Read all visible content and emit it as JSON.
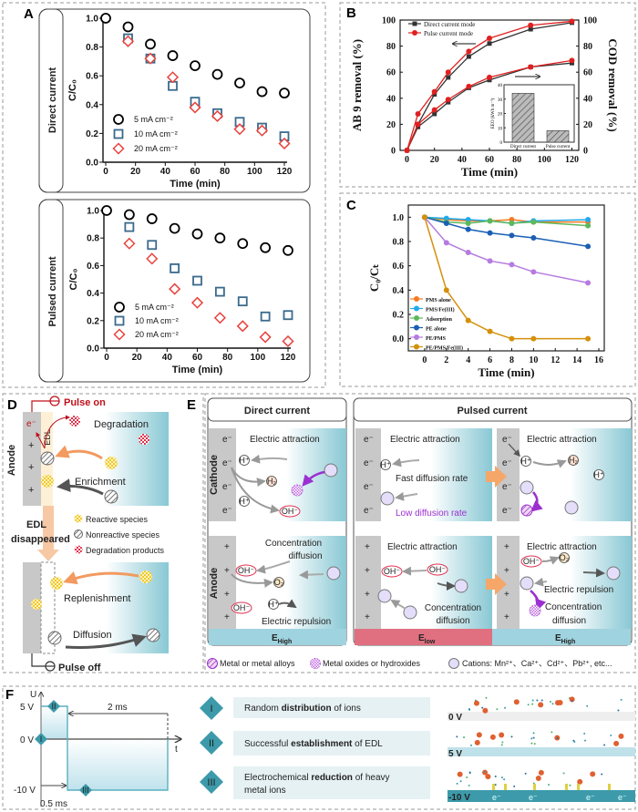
{
  "panel_labels": {
    "A": "A",
    "B": "B",
    "C": "C",
    "D": "D",
    "E": "E",
    "F": "F"
  },
  "panel_a": {
    "direct_label": "Direct current",
    "pulsed_label": "Pulsed current"
  },
  "chart_data": [
    {
      "id": "a-direct",
      "type": "scatter",
      "xlabel": "Time (min)",
      "ylabel": "C/C₀",
      "xlim": [
        0,
        120
      ],
      "ylim": [
        0,
        1.0
      ],
      "xticks": [
        "0",
        "20",
        "40",
        "60",
        "80",
        "100",
        "120"
      ],
      "yticks": [
        "0.0",
        "0.2",
        "0.4",
        "0.6",
        "0.8",
        "1.0"
      ],
      "x": [
        0,
        15,
        30,
        45,
        60,
        75,
        90,
        105,
        120
      ],
      "legend": "bottom-left",
      "series": [
        {
          "name": "5 mA cm⁻²",
          "marker": "circle",
          "color": "#000000",
          "values": [
            1.0,
            0.94,
            0.82,
            0.74,
            0.67,
            0.61,
            0.55,
            0.49,
            0.48
          ]
        },
        {
          "name": "10 mA cm⁻²",
          "marker": "square",
          "color": "#3a6a8c",
          "values": [
            null,
            0.86,
            0.72,
            0.53,
            0.42,
            0.34,
            0.28,
            0.24,
            0.18
          ]
        },
        {
          "name": "20 mA cm⁻²",
          "marker": "diamond",
          "color": "#e8413c",
          "values": [
            null,
            0.84,
            0.72,
            0.59,
            0.38,
            0.32,
            0.23,
            0.22,
            0.13
          ]
        }
      ]
    },
    {
      "id": "a-pulsed",
      "type": "scatter",
      "xlabel": "Time (min)",
      "ylabel": "C/C₀",
      "xlim": [
        0,
        120
      ],
      "ylim": [
        0,
        1.0
      ],
      "xticks": [
        "0",
        "20",
        "40",
        "60",
        "80",
        "100",
        "120"
      ],
      "yticks": [
        "0.0",
        "0.2",
        "0.4",
        "0.6",
        "0.8",
        "1.0"
      ],
      "x": [
        0,
        15,
        30,
        45,
        60,
        75,
        90,
        105,
        120
      ],
      "legend": "bottom-left",
      "series": [
        {
          "name": "5 mA cm⁻²",
          "marker": "circle",
          "color": "#000000",
          "values": [
            1.0,
            0.97,
            0.94,
            0.87,
            0.83,
            0.8,
            0.76,
            0.73,
            0.71
          ]
        },
        {
          "name": "10 mA cm⁻²",
          "marker": "square",
          "color": "#3a6a8c",
          "values": [
            null,
            0.88,
            0.75,
            0.58,
            0.49,
            0.41,
            0.34,
            0.23,
            0.24
          ]
        },
        {
          "name": "20 mA cm⁻²",
          "marker": "diamond",
          "color": "#e8413c",
          "values": [
            null,
            0.76,
            0.65,
            0.43,
            0.33,
            0.22,
            0.16,
            0.08,
            0.05
          ]
        }
      ]
    },
    {
      "id": "b-removal",
      "type": "line",
      "xlabel": "Time (min)",
      "ylabel": "AB 9 removal (%)",
      "ylabel_right": "COD removal (%)",
      "xlim": [
        -5,
        125
      ],
      "ylim": [
        0,
        100
      ],
      "xticks": [
        "0",
        "20",
        "40",
        "60",
        "80",
        "100",
        "120"
      ],
      "yticks": [
        "0",
        "20",
        "40",
        "60",
        "80",
        "100"
      ],
      "yticks_right": [
        "0",
        "20",
        "40",
        "60",
        "80",
        "100"
      ],
      "x": [
        0,
        8,
        20,
        30,
        45,
        60,
        90,
        120
      ],
      "legend": "top-left",
      "series": [
        {
          "name": "Direct current mode",
          "marker": "square-filled",
          "color": "#333333",
          "axis": "left",
          "values": [
            0,
            20,
            43,
            56,
            72,
            82,
            93,
            98
          ]
        },
        {
          "name": "Pulse current mode",
          "marker": "circle-filled",
          "color": "#e02020",
          "axis": "left",
          "values": [
            0,
            28,
            45,
            60,
            76,
            86,
            96,
            99
          ]
        },
        {
          "marker": "square-filled",
          "color": "#333333",
          "axis": "right",
          "values": [
            0,
            18,
            28,
            37,
            48,
            54,
            64,
            67
          ]
        },
        {
          "marker": "circle-filled",
          "color": "#e02020",
          "axis": "right",
          "values": [
            0,
            20,
            31,
            39,
            49,
            56,
            64,
            69
          ]
        }
      ]
    },
    {
      "id": "b-inset",
      "type": "bar",
      "ylabel": "EEO (kWh m⁻³)",
      "ylim": [
        0,
        40
      ],
      "yticks": [
        "0",
        "10",
        "20",
        "30",
        "40"
      ],
      "categories": [
        "Direct current",
        "Pulse current"
      ],
      "values": [
        34,
        8
      ]
    },
    {
      "id": "c-kinetics",
      "type": "line",
      "xlabel": "Time (min)",
      "ylabel": "C₀/Cₜ",
      "xlim": [
        -1.5,
        16.5
      ],
      "ylim": [
        -0.1,
        1.1
      ],
      "xticks": [
        "0",
        "2",
        "4",
        "6",
        "8",
        "10",
        "12",
        "14",
        "16"
      ],
      "yticks": [
        "0.0",
        "0.2",
        "0.4",
        "0.6",
        "0.8",
        "1.0"
      ],
      "x": [
        0,
        2,
        4,
        6,
        8,
        10,
        15
      ],
      "legend": "bottom-left",
      "series": [
        {
          "name": "PMS alone",
          "marker": "circle-filled",
          "color": "#f47a20",
          "values": [
            1.0,
            0.98,
            0.97,
            0.97,
            0.98,
            0.96,
            0.96
          ]
        },
        {
          "name": "PMS/Fe(III)",
          "marker": "circle-filled",
          "color": "#22aaee",
          "values": [
            1.0,
            0.99,
            0.98,
            0.97,
            0.95,
            0.97,
            0.98
          ]
        },
        {
          "name": "Adsorption",
          "marker": "circle-filled",
          "color": "#5cb85c",
          "values": [
            1.0,
            0.96,
            0.95,
            0.97,
            0.95,
            0.96,
            0.93
          ]
        },
        {
          "name": "PE alone",
          "marker": "circle-filled",
          "color": "#1a5fb4",
          "values": [
            1.0,
            0.95,
            0.9,
            0.87,
            0.85,
            0.83,
            0.76
          ]
        },
        {
          "name": "PE/PMS",
          "marker": "circle-filled",
          "color": "#b57be0",
          "values": [
            1.0,
            0.79,
            0.71,
            0.64,
            0.61,
            0.55,
            0.46
          ]
        },
        {
          "name": "PE/PMS/Fe(III)",
          "marker": "circle-filled",
          "color": "#d4900a",
          "values": [
            1.0,
            0.4,
            0.15,
            0.06,
            0.0,
            0.0,
            0.0
          ]
        }
      ]
    }
  ],
  "panel_d": {
    "pulse_on": "Pulse on",
    "pulse_off": "Pulse off",
    "anode": "Anode",
    "edl": "EDL",
    "electron": "e⁻",
    "plus": "+",
    "degradation": "Degradation",
    "enrichment": "Enrichment",
    "edl_disappeared_1": "EDL",
    "edl_disappeared_2": "disappeared",
    "legend": [
      "Reactive species",
      "Nonreactive species",
      "Degradation products"
    ],
    "replenishment": "Replenishment",
    "diffusion": "Diffusion"
  },
  "panel_e": {
    "direct_header": "Direct current",
    "pulsed_header": "Pulsed current",
    "cathode": "Cathode",
    "anode": "Anode",
    "electron": "e⁻",
    "plus": "+",
    "electric_attraction": "Electric attraction",
    "electric_repulsion": "Electric repulsion",
    "concentration": "Concentration",
    "diffusion": "diffusion",
    "fast_diffusion": "Fast diffusion rate",
    "low_diffusion": "Low diffusion rate",
    "h_plus": "H⁺",
    "h2": "H₂",
    "oh_minus": "OH⁻",
    "o2": "O₂",
    "e_symbol": "E",
    "e_high": "High",
    "e_low": "low",
    "legend": [
      "Metal or metal alloys",
      "Metal oxides or hydroxides",
      "Cations: Mn²⁺、Ca²⁺、Cd²⁺、Pb²⁺, etc..."
    ],
    "colors": {
      "e_high": "#9fd3df",
      "e_low": "#e07080"
    }
  },
  "panel_f": {
    "u_axis": "U",
    "t_axis": "t",
    "v_5": "5 V",
    "v_0": "0 V",
    "v_neg10": "-10 V",
    "period": "2 ms",
    "pulse_width": "0.5 ms",
    "stages": [
      {
        "numeral": "I",
        "pre": "Random ",
        "bold": "distribution",
        "post": " of ions"
      },
      {
        "numeral": "II",
        "pre": "Successful ",
        "bold": "establishment",
        "post": " of EDL"
      },
      {
        "numeral": "III",
        "pre": "Electrochemical ",
        "bold": "reduction",
        "post": " of heavy",
        "line2": "metal ions"
      }
    ],
    "snapshots": [
      "0 V",
      "5 V",
      "-10 V"
    ],
    "electron": "e⁻"
  }
}
